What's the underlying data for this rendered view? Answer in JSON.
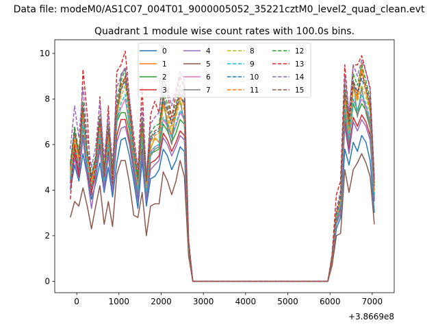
{
  "suptitle": "Data file: modeM0/AS1C07_004T01_9000005052_35221cztM0_level2_quad_clean.evt",
  "chart_data": {
    "type": "line",
    "title": "Quadrant 1 module wise count rates with 100.0s bins.",
    "xlabel": "",
    "ylabel": "",
    "x_offset_label": "+3.8669e8",
    "xlim": [
      -520,
      7520
    ],
    "ylim": [
      -0.5,
      10.6
    ],
    "xticks": [
      0,
      1000,
      2000,
      3000,
      4000,
      5000,
      6000,
      7000
    ],
    "yticks": [
      0,
      2,
      4,
      6,
      8,
      10
    ],
    "grid": false,
    "legend_position": "upper-center, 4 columns",
    "x": [
      -150,
      -50,
      50,
      150,
      250,
      350,
      450,
      550,
      650,
      750,
      850,
      950,
      1050,
      1150,
      1250,
      1350,
      1450,
      1550,
      1650,
      1750,
      1850,
      1950,
      2050,
      2150,
      2250,
      2350,
      2450,
      2550,
      2650,
      2750,
      2850,
      2950,
      3050,
      3150,
      3250,
      3350,
      3450,
      3550,
      3650,
      3750,
      3850,
      3950,
      4050,
      4150,
      4250,
      4350,
      4450,
      4550,
      4650,
      4750,
      4850,
      4950,
      5050,
      5150,
      5250,
      5350,
      5450,
      5550,
      5650,
      5750,
      5850,
      5950,
      6050,
      6150,
      6250,
      6350,
      6450,
      6550,
      6650,
      6750,
      6850,
      6950,
      7050
    ],
    "series": [
      {
        "name": "0",
        "color": "#1f77b4",
        "dash": "solid",
        "values": [
          4.0,
          5.1,
          4.4,
          5.6,
          4.6,
          3.6,
          4.3,
          5.2,
          3.9,
          5.0,
          3.7,
          5.2,
          6.2,
          6.3,
          5.5,
          4.4,
          3.2,
          5.3,
          3.3,
          4.5,
          4.6,
          4.9,
          5.8,
          5.5,
          4.9,
          5.3,
          5.9,
          5.7,
          1.2,
          0,
          0,
          0,
          0,
          0,
          0,
          0,
          0,
          0,
          0,
          0,
          0,
          0,
          0,
          0,
          0,
          0,
          0,
          0,
          0,
          0,
          0,
          0,
          0,
          0,
          0,
          0,
          0,
          0,
          0,
          0,
          0,
          0,
          0.8,
          2.3,
          2.8,
          5.8,
          5.1,
          6.1,
          5.7,
          6.4,
          6.1,
          5.3,
          3.0
        ]
      },
      {
        "name": "1",
        "color": "#ff7f0e",
        "dash": "solid",
        "values": [
          4.8,
          6.2,
          5.2,
          7.2,
          5.3,
          4.3,
          5.0,
          6.7,
          4.7,
          6.4,
          4.5,
          7.3,
          8.4,
          9.0,
          7.4,
          5.6,
          4.3,
          6.8,
          4.2,
          5.8,
          6.3,
          6.1,
          7.8,
          7.0,
          6.4,
          7.4,
          8.1,
          7.7,
          1.6,
          0,
          0,
          0,
          0,
          0,
          0,
          0,
          0,
          0,
          0,
          0,
          0,
          0,
          0,
          0,
          0,
          0,
          0,
          0,
          0,
          0,
          0,
          0,
          0,
          0,
          0,
          0,
          0,
          0,
          0,
          0,
          0,
          0,
          1.0,
          2.8,
          3.6,
          8.1,
          6.5,
          8.5,
          8.0,
          9.3,
          8.4,
          7.5,
          4.0
        ]
      },
      {
        "name": "2",
        "color": "#2ca02c",
        "dash": "solid",
        "values": [
          4.5,
          6.0,
          5.0,
          7.0,
          5.0,
          4.0,
          4.9,
          6.5,
          4.4,
          6.1,
          4.3,
          7.0,
          7.4,
          7.4,
          6.6,
          5.2,
          3.9,
          6.2,
          3.9,
          5.6,
          5.7,
          5.8,
          6.9,
          6.6,
          6.1,
          6.5,
          7.1,
          6.9,
          1.5,
          0,
          0,
          0,
          0,
          0,
          0,
          0,
          0,
          0,
          0,
          0,
          0,
          0,
          0,
          0,
          0,
          0,
          0,
          0,
          0,
          0,
          0,
          0,
          0,
          0,
          0,
          0,
          0,
          0,
          0,
          0,
          0,
          0,
          1.0,
          2.7,
          3.4,
          7.5,
          6.2,
          7.8,
          7.3,
          7.8,
          7.5,
          6.9,
          3.8
        ]
      },
      {
        "name": "3",
        "color": "#d62728",
        "dash": "solid",
        "values": [
          4.3,
          5.6,
          4.7,
          6.4,
          4.8,
          3.9,
          4.7,
          6.0,
          4.2,
          5.7,
          4.1,
          6.4,
          7.1,
          7.1,
          6.2,
          4.9,
          3.7,
          5.8,
          3.7,
          5.2,
          5.3,
          5.5,
          6.5,
          6.2,
          5.7,
          6.1,
          6.6,
          6.4,
          1.4,
          0,
          0,
          0,
          0,
          0,
          0,
          0,
          0,
          0,
          0,
          0,
          0,
          0,
          0,
          0,
          0,
          0,
          0,
          0,
          0,
          0,
          0,
          0,
          0,
          0,
          0,
          0,
          0,
          0,
          0,
          0,
          0,
          0,
          0.9,
          2.6,
          3.2,
          7.0,
          5.8,
          7.2,
          6.8,
          7.3,
          7.0,
          6.4,
          3.6
        ]
      },
      {
        "name": "4",
        "color": "#9467bd",
        "dash": "solid",
        "values": [
          4.1,
          5.4,
          4.5,
          6.3,
          4.6,
          3.2,
          4.5,
          5.8,
          4.0,
          5.5,
          3.9,
          6.1,
          6.7,
          6.8,
          6.0,
          4.7,
          3.5,
          5.6,
          3.5,
          4.9,
          5.1,
          5.3,
          6.3,
          6.0,
          5.5,
          5.9,
          6.4,
          6.2,
          1.3,
          0,
          0,
          0,
          0,
          0,
          0,
          0,
          0,
          0,
          0,
          0,
          0,
          0,
          0,
          0,
          0,
          0,
          0,
          0,
          0,
          0,
          0,
          0,
          0,
          0,
          0,
          0,
          0,
          0,
          0,
          0,
          0,
          0,
          0.9,
          2.5,
          3.0,
          6.8,
          5.6,
          7.0,
          6.6,
          7.1,
          6.8,
          6.2,
          3.5
        ]
      },
      {
        "name": "5",
        "color": "#8c564b",
        "dash": "solid",
        "values": [
          2.8,
          3.5,
          3.3,
          4.1,
          3.3,
          2.3,
          3.3,
          4.2,
          2.5,
          3.5,
          2.4,
          4.7,
          5.3,
          5.3,
          4.3,
          2.9,
          2.8,
          3.9,
          2.0,
          3.3,
          3.4,
          3.4,
          4.8,
          4.4,
          3.8,
          4.4,
          5.3,
          4.6,
          1.1,
          0,
          0,
          0,
          0,
          0,
          0,
          0,
          0,
          0,
          0,
          0,
          0,
          0,
          0,
          0,
          0,
          0,
          0,
          0,
          0,
          0,
          0,
          0,
          0,
          0,
          0,
          0,
          0,
          0,
          0,
          0,
          0,
          0,
          0.7,
          2.0,
          2.1,
          4.9,
          3.9,
          4.9,
          5.2,
          5.6,
          5.2,
          4.6,
          2.5
        ]
      },
      {
        "name": "6",
        "color": "#e377c2",
        "dash": "solid",
        "values": [
          4.6,
          6.1,
          5.1,
          7.1,
          5.2,
          4.1,
          5.0,
          6.6,
          4.5,
          6.2,
          4.4,
          7.1,
          7.6,
          8.0,
          6.8,
          5.3,
          4.0,
          6.4,
          4.0,
          5.7,
          5.9,
          6.0,
          7.1,
          6.8,
          6.3,
          6.8,
          7.4,
          7.1,
          1.5,
          0,
          0,
          0,
          0,
          0,
          0,
          0,
          0,
          0,
          0,
          0,
          0,
          0,
          0,
          0,
          0,
          0,
          0,
          0,
          0,
          0,
          0,
          0,
          0,
          0,
          0,
          0,
          0,
          0,
          0,
          0,
          0,
          0,
          1.0,
          2.7,
          3.4,
          7.7,
          6.3,
          8.0,
          7.5,
          8.0,
          7.7,
          7.0,
          3.8
        ]
      },
      {
        "name": "7",
        "color": "#7f7f7f",
        "dash": "solid",
        "values": [
          4.4,
          5.8,
          4.9,
          6.8,
          5.0,
          4.0,
          4.8,
          6.3,
          4.3,
          6.0,
          4.2,
          6.9,
          9.1,
          9.3,
          7.0,
          5.1,
          3.8,
          6.3,
          3.8,
          5.5,
          5.8,
          5.9,
          8.2,
          6.7,
          6.0,
          7.6,
          7.9,
          7.0,
          1.4,
          0,
          0,
          0,
          0,
          0,
          0,
          0,
          0,
          0,
          0,
          0,
          0,
          0,
          0,
          0,
          0,
          0,
          0,
          0,
          0,
          0,
          0,
          0,
          0,
          0,
          0,
          0,
          0,
          0,
          0,
          0,
          0,
          0,
          1.0,
          2.6,
          3.3,
          7.3,
          6.0,
          8.8,
          7.2,
          8.5,
          7.4,
          6.7,
          3.7
        ]
      },
      {
        "name": "8",
        "color": "#bcbd22",
        "dash": "dashed",
        "values": [
          4.7,
          6.1,
          5.3,
          7.4,
          5.4,
          4.3,
          5.1,
          6.8,
          4.6,
          6.3,
          4.5,
          7.3,
          8.1,
          8.6,
          7.2,
          5.5,
          4.2,
          6.6,
          4.1,
          5.9,
          6.2,
          6.3,
          7.6,
          7.2,
          6.6,
          7.2,
          7.9,
          7.5,
          1.6,
          0,
          0,
          0,
          0,
          0,
          0,
          0,
          0,
          0,
          0,
          0,
          0,
          0,
          0,
          0,
          0,
          0,
          0,
          0,
          0,
          0,
          0,
          0,
          0,
          0,
          0,
          0,
          0,
          0,
          0,
          0,
          0,
          0,
          1.0,
          2.8,
          3.5,
          8.0,
          6.5,
          8.4,
          7.9,
          8.6,
          8.1,
          7.4,
          3.9
        ]
      },
      {
        "name": "9",
        "color": "#17becf",
        "dash": "dashed",
        "values": [
          4.5,
          5.9,
          5.0,
          7.0,
          5.1,
          4.1,
          4.9,
          6.5,
          4.4,
          6.1,
          4.3,
          7.0,
          7.8,
          8.2,
          6.9,
          5.3,
          4.0,
          6.3,
          3.9,
          5.6,
          5.9,
          6.0,
          7.2,
          6.9,
          6.3,
          6.9,
          7.5,
          7.2,
          1.5,
          0,
          0,
          0,
          0,
          0,
          0,
          0,
          0,
          0,
          0,
          0,
          0,
          0,
          0,
          0,
          0,
          0,
          0,
          0,
          0,
          0,
          0,
          0,
          0,
          0,
          0,
          0,
          0,
          0,
          0,
          0,
          0,
          0,
          1.0,
          2.7,
          3.4,
          7.7,
          6.2,
          8.0,
          7.5,
          8.2,
          7.8,
          7.1,
          3.8
        ]
      },
      {
        "name": "10",
        "color": "#1f77b4",
        "dash": "dashed",
        "values": [
          5.0,
          6.5,
          5.5,
          7.6,
          5.6,
          4.5,
          5.3,
          7.0,
          4.8,
          6.6,
          4.7,
          7.6,
          8.4,
          8.8,
          7.5,
          5.7,
          4.4,
          6.9,
          4.3,
          6.2,
          6.5,
          6.6,
          7.9,
          7.5,
          6.9,
          7.5,
          8.2,
          7.8,
          1.6,
          0,
          0,
          0,
          0,
          0,
          0,
          0,
          0,
          0,
          0,
          0,
          0,
          0,
          0,
          0,
          0,
          0,
          0,
          0,
          0,
          0,
          0,
          0,
          0,
          0,
          0,
          0,
          0,
          0,
          0,
          0,
          0,
          0,
          1.1,
          2.9,
          3.7,
          8.3,
          6.8,
          8.7,
          8.2,
          8.9,
          8.4,
          7.7,
          4.1
        ]
      },
      {
        "name": "11",
        "color": "#ff7f0e",
        "dash": "dashed",
        "values": [
          4.9,
          6.4,
          5.4,
          7.5,
          5.5,
          4.4,
          5.2,
          6.9,
          4.7,
          6.5,
          4.6,
          7.5,
          8.7,
          8.9,
          7.6,
          5.6,
          4.3,
          6.8,
          4.2,
          6.1,
          6.4,
          6.5,
          7.8,
          7.4,
          6.8,
          7.4,
          8.1,
          7.7,
          1.6,
          0,
          0,
          0,
          0,
          0,
          0,
          0,
          0,
          0,
          0,
          0,
          0,
          0,
          0,
          0,
          0,
          0,
          0,
          0,
          0,
          0,
          0,
          0,
          0,
          0,
          0,
          0,
          0,
          0,
          0,
          0,
          0,
          0,
          1.0,
          2.9,
          3.6,
          8.2,
          6.7,
          8.6,
          8.1,
          9.6,
          8.3,
          7.6,
          4.0
        ]
      },
      {
        "name": "12",
        "color": "#2ca02c",
        "dash": "dashed",
        "values": [
          5.2,
          6.8,
          5.7,
          7.9,
          5.8,
          4.7,
          5.5,
          7.3,
          5.0,
          6.9,
          4.9,
          8.0,
          8.8,
          9.3,
          7.9,
          6.0,
          4.6,
          7.2,
          4.5,
          6.5,
          6.8,
          6.9,
          8.3,
          7.8,
          7.2,
          7.8,
          8.6,
          8.2,
          1.7,
          0,
          0,
          0,
          0,
          0,
          0,
          0,
          0,
          0,
          0,
          0,
          0,
          0,
          0,
          0,
          0,
          0,
          0,
          0,
          0,
          0,
          0,
          0,
          0,
          0,
          0,
          0,
          0,
          0,
          0,
          0,
          0,
          0,
          1.1,
          3.0,
          3.8,
          8.6,
          7.1,
          9.1,
          8.6,
          9.5,
          8.8,
          8.0,
          4.3
        ]
      },
      {
        "name": "13",
        "color": "#d62728",
        "dash": "dashed",
        "values": [
          3.6,
          6.0,
          4.6,
          9.3,
          7.3,
          3.8,
          5.1,
          8.1,
          4.6,
          7.7,
          4.3,
          9.2,
          9.5,
          10.1,
          8.0,
          6.4,
          4.9,
          8.5,
          4.4,
          7.3,
          7.9,
          7.4,
          9.0,
          8.2,
          7.2,
          8.2,
          9.0,
          8.5,
          1.8,
          0,
          0,
          0,
          0,
          0,
          0,
          0,
          0,
          0,
          0,
          0,
          0,
          0,
          0,
          0,
          0,
          0,
          0,
          0,
          0,
          0,
          0,
          0,
          0,
          0,
          0,
          0,
          0,
          0,
          0,
          0,
          0,
          0,
          1.2,
          3.8,
          4.4,
          9.5,
          7.2,
          9.5,
          9.5,
          9.9,
          9.2,
          8.5,
          4.5
        ]
      },
      {
        "name": "14",
        "color": "#9467bd",
        "dash": "dashed",
        "values": [
          5.8,
          7.7,
          6.3,
          8.5,
          6.3,
          5.0,
          5.9,
          7.9,
          5.4,
          7.3,
          5.2,
          8.5,
          9.0,
          9.4,
          8.0,
          6.2,
          4.9,
          7.6,
          4.7,
          6.9,
          7.2,
          7.4,
          8.9,
          8.4,
          7.7,
          8.4,
          9.2,
          8.8,
          1.8,
          0,
          0,
          0,
          0,
          0,
          0,
          0,
          0,
          0,
          0,
          0,
          0,
          0,
          0,
          0,
          0,
          0,
          0,
          0,
          0,
          0,
          0,
          0,
          0,
          0,
          0,
          0,
          0,
          0,
          0,
          0,
          0,
          0,
          1.1,
          3.1,
          4.0,
          9.0,
          7.4,
          9.5,
          9.0,
          9.7,
          9.2,
          8.4,
          4.5
        ]
      },
      {
        "name": "15",
        "color": "#8c564b",
        "dash": "dashed",
        "values": [
          5.1,
          6.6,
          5.6,
          7.7,
          5.7,
          4.6,
          5.4,
          7.1,
          4.9,
          6.7,
          4.8,
          7.7,
          8.6,
          9.0,
          7.7,
          5.8,
          4.5,
          7.0,
          4.4,
          6.3,
          6.6,
          6.7,
          8.1,
          7.6,
          7.0,
          7.6,
          8.4,
          8.0,
          1.7,
          0,
          0,
          0,
          0,
          0,
          0,
          0,
          0,
          0,
          0,
          0,
          0,
          0,
          0,
          0,
          0,
          0,
          0,
          0,
          0,
          0,
          0,
          0,
          0,
          0,
          0,
          0,
          0,
          0,
          0,
          0,
          0,
          0,
          1.1,
          3.0,
          3.7,
          8.4,
          6.9,
          8.8,
          8.3,
          9.1,
          8.6,
          7.8,
          4.2
        ]
      }
    ]
  }
}
